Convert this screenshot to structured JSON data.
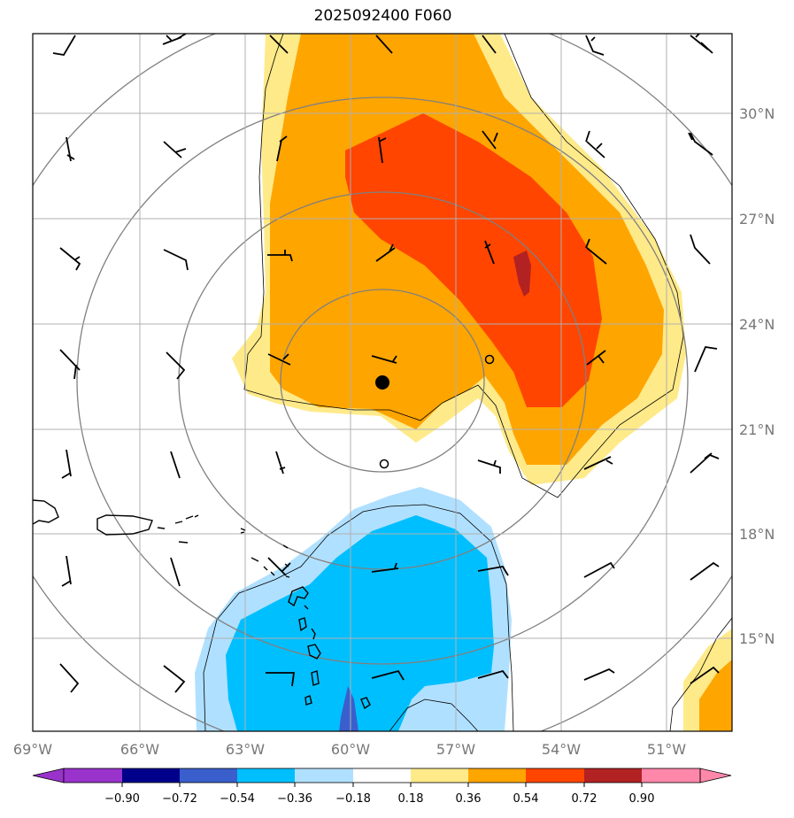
{
  "title": "2025092400 F060",
  "map": {
    "lon_ticks": [
      "69°W",
      "66°W",
      "63°W",
      "60°W",
      "57°W",
      "54°W",
      "51°W"
    ],
    "lat_ticks": [
      "30°N",
      "27°N",
      "24°N",
      "21°N",
      "18°N",
      "15°N"
    ],
    "lon_range": [
      -69,
      -49
    ],
    "lat_range": [
      12.5,
      32.3
    ],
    "center_marker": {
      "lon": -59.1,
      "lat": 22.3
    },
    "small_circles": [
      {
        "lon": -56.0,
        "lat": 22.9
      },
      {
        "lon": -59.0,
        "lat": 19.9
      }
    ]
  },
  "colorbar": {
    "tick_labels": [
      "−0.90",
      "−0.72",
      "−0.54",
      "−0.36",
      "−0.18",
      "0.18",
      "0.36",
      "0.54",
      "0.72",
      "0.90"
    ],
    "colors": {
      "under": "#9933cc",
      "c1": "#00008b",
      "c2": "#3a5fcd",
      "c3": "#00bfff",
      "c4": "#b0e0ff",
      "c5": "#ffffff",
      "c6": "#ffea8a",
      "c7": "#ffa500",
      "c8": "#ff4500",
      "c9": "#b22222",
      "over": "#ff88aa"
    }
  },
  "icons": {
    "center": "storm-center-marker",
    "barb": "wind-barb-icon"
  }
}
